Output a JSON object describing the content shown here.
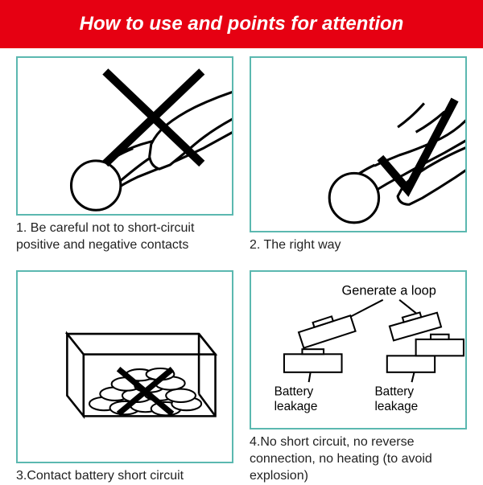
{
  "header": {
    "text": "How to use and points for attention",
    "bg_color": "#e60012",
    "text_color": "#ffffff",
    "fontsize": 24
  },
  "panel_border_color": "#5bb8b0",
  "stroke_color": "#000000",
  "check_color": "#000000",
  "cross_color": "#000000",
  "captions": {
    "c1": "1. Be careful not to short-circuit positive and negative contacts",
    "c2": "2. The right way",
    "c3": "3.Contact battery short circuit",
    "c4": "4.No short circuit, no reverse connection, no heating (to avoid explosion)"
  },
  "labels": {
    "generate_loop": "Generate a loop",
    "battery_leakage": "Battery leakage"
  }
}
